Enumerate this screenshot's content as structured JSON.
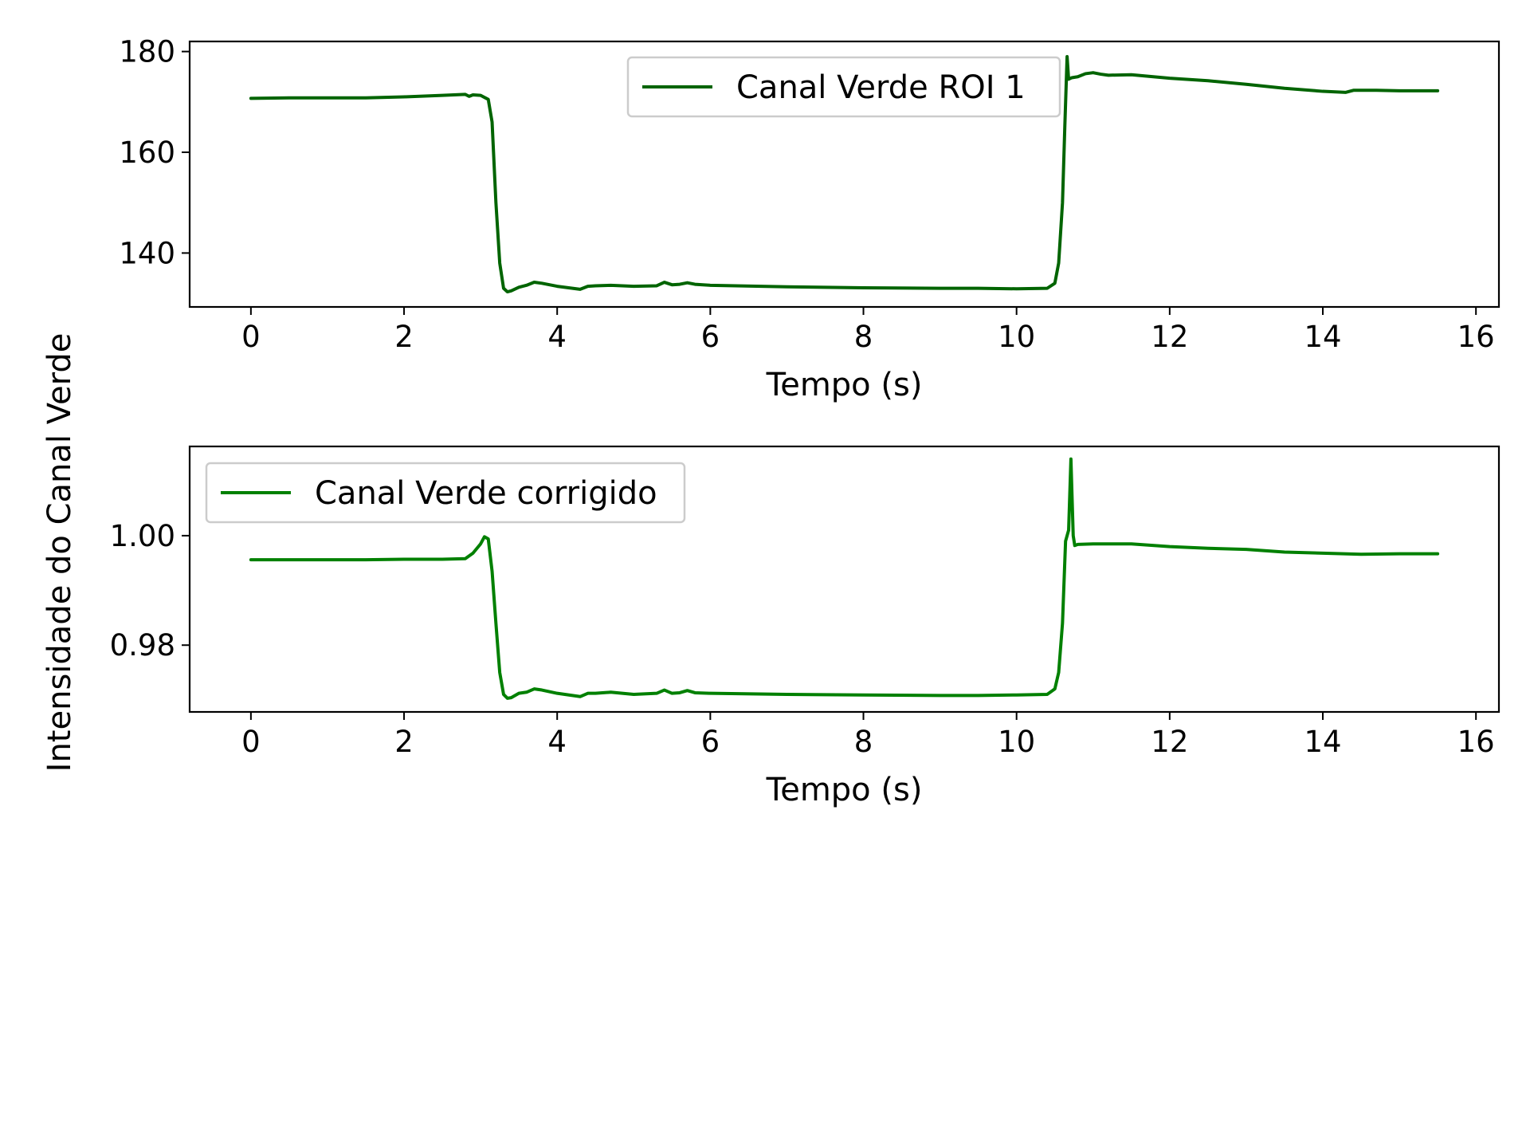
{
  "figure": {
    "shared_ylabel": "Intensidade do Canal Verde"
  },
  "chart_data": [
    {
      "type": "line",
      "title": "",
      "xlabel": "Tempo (s)",
      "ylabel": "",
      "xlim": [
        -0.8,
        16.3
      ],
      "ylim": [
        129.3,
        182
      ],
      "xticks": [
        0,
        2,
        4,
        6,
        8,
        10,
        12,
        14,
        16
      ],
      "yticks": [
        140,
        160,
        180
      ],
      "ytick_decimals": 0,
      "grid": false,
      "legend": {
        "position": "top-center"
      },
      "series": [
        {
          "name": "Canal Verde ROI 1",
          "color": "#006400",
          "x": [
            0,
            0.5,
            1.0,
            1.5,
            2.0,
            2.5,
            2.8,
            2.85,
            2.9,
            3.0,
            3.1,
            3.15,
            3.2,
            3.25,
            3.3,
            3.35,
            3.4,
            3.5,
            3.6,
            3.7,
            3.8,
            4.0,
            4.2,
            4.3,
            4.4,
            4.5,
            4.7,
            5.0,
            5.3,
            5.4,
            5.5,
            5.6,
            5.7,
            5.8,
            6.0,
            7.0,
            8.0,
            9.0,
            9.5,
            10.0,
            10.4,
            10.5,
            10.55,
            10.6,
            10.63,
            10.66,
            10.68,
            10.72,
            10.8,
            10.9,
            11.0,
            11.1,
            11.2,
            11.5,
            12.0,
            12.5,
            13.0,
            13.5,
            14.0,
            14.3,
            14.4,
            14.7,
            15.0,
            15.5
          ],
          "y": [
            170.7,
            170.8,
            170.8,
            170.8,
            171.0,
            171.3,
            171.5,
            171.1,
            171.4,
            171.3,
            170.5,
            166,
            150,
            138,
            133,
            132.3,
            132.5,
            133.2,
            133.6,
            134.2,
            134,
            133.4,
            133.0,
            132.8,
            133.4,
            133.5,
            133.6,
            133.4,
            133.5,
            134.2,
            133.7,
            133.8,
            134.1,
            133.8,
            133.6,
            133.3,
            133.1,
            133.0,
            133.0,
            132.9,
            133.0,
            134,
            138,
            150,
            165,
            179,
            174.5,
            174.8,
            175.0,
            175.6,
            175.8,
            175.5,
            175.3,
            175.4,
            174.7,
            174.2,
            173.5,
            172.7,
            172.1,
            171.9,
            172.3,
            172.3,
            172.2,
            172.2
          ]
        }
      ]
    },
    {
      "type": "line",
      "title": "",
      "xlabel": "Tempo (s)",
      "ylabel": "",
      "xlim": [
        -0.8,
        16.3
      ],
      "ylim": [
        0.9678,
        1.0163
      ],
      "xticks": [
        0,
        2,
        4,
        6,
        8,
        10,
        12,
        14,
        16
      ],
      "yticks": [
        0.98,
        1.0
      ],
      "ytick_decimals": 2,
      "grid": false,
      "legend": {
        "position": "top-left"
      },
      "series": [
        {
          "name": "Canal Verde corrigido",
          "color": "#008000",
          "x": [
            0,
            0.5,
            1.0,
            1.5,
            2.0,
            2.5,
            2.8,
            2.9,
            3.0,
            3.05,
            3.1,
            3.15,
            3.2,
            3.25,
            3.3,
            3.35,
            3.4,
            3.5,
            3.6,
            3.7,
            3.8,
            4.0,
            4.2,
            4.3,
            4.4,
            4.5,
            4.7,
            5.0,
            5.3,
            5.4,
            5.5,
            5.6,
            5.7,
            5.8,
            6.0,
            7.0,
            8.0,
            9.0,
            9.5,
            10.0,
            10.4,
            10.5,
            10.55,
            10.6,
            10.64,
            10.68,
            10.71,
            10.74,
            10.76,
            10.8,
            11.0,
            11.5,
            12.0,
            12.5,
            13.0,
            13.5,
            14.0,
            14.5,
            15.0,
            15.5
          ],
          "y": [
            0.9956,
            0.9956,
            0.9956,
            0.9956,
            0.9957,
            0.9957,
            0.9958,
            0.9968,
            0.9985,
            0.9998,
            0.9994,
            0.9935,
            0.984,
            0.975,
            0.971,
            0.9703,
            0.9704,
            0.9712,
            0.9714,
            0.972,
            0.9718,
            0.9712,
            0.9708,
            0.9706,
            0.9712,
            0.9712,
            0.9714,
            0.971,
            0.9712,
            0.9718,
            0.9712,
            0.9713,
            0.9717,
            0.9713,
            0.9712,
            0.971,
            0.9709,
            0.9708,
            0.9708,
            0.9709,
            0.971,
            0.972,
            0.975,
            0.984,
            0.999,
            1.001,
            1.014,
            1.0,
            0.9982,
            0.9984,
            0.9985,
            0.9985,
            0.998,
            0.9977,
            0.9975,
            0.997,
            0.9968,
            0.9966,
            0.9967,
            0.9967
          ]
        }
      ]
    }
  ]
}
